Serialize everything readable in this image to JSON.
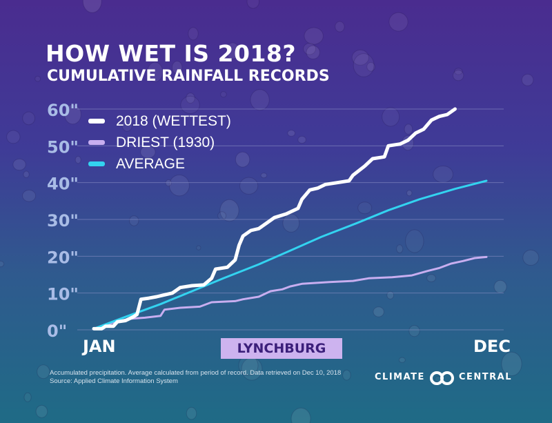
{
  "title": "HOW WET IS 2018?",
  "subtitle": "CUMULATIVE RAINFALL RECORDS",
  "location_label": "LYNCHBURG",
  "footnote": {
    "line1": "Accumulated precipitation. Average calculated from period of record. Data retrieved on Dec 10, 2018",
    "line2": "Source: Applied Climate Information System"
  },
  "logo": {
    "word1": "CLIMATE",
    "word2": "CENTRAL"
  },
  "colors": {
    "wettest": "#ffffff",
    "driest": "#c8aef0",
    "average": "#33d3f0",
    "grid": "#8a8fc4",
    "badge": "#cdb3ef"
  },
  "chart_data": {
    "type": "line",
    "title": "HOW WET IS 2018?",
    "subtitle": "CUMULATIVE RAINFALL RECORDS",
    "xlabel": "",
    "ylabel": "",
    "x_tick_labels": [
      "JAN",
      "DEC"
    ],
    "y_ticks": [
      0,
      10,
      20,
      30,
      40,
      50,
      60
    ],
    "y_tick_labels": [
      "0\"",
      "10\"",
      "20\"",
      "30\"",
      "40\"",
      "50\"",
      "60\""
    ],
    "ylim": [
      0,
      60
    ],
    "xlim": [
      0,
      1
    ],
    "grid": true,
    "legend_position": "top-left",
    "series": [
      {
        "name": "2018 (WETTEST)",
        "color": "#ffffff",
        "points": [
          [
            0.0,
            0.3
          ],
          [
            0.02,
            0.3
          ],
          [
            0.03,
            1.0
          ],
          [
            0.05,
            1.0
          ],
          [
            0.06,
            2.2
          ],
          [
            0.08,
            2.5
          ],
          [
            0.1,
            3.5
          ],
          [
            0.11,
            4.2
          ],
          [
            0.12,
            8.3
          ],
          [
            0.14,
            8.6
          ],
          [
            0.16,
            9.0
          ],
          [
            0.18,
            9.5
          ],
          [
            0.2,
            10.0
          ],
          [
            0.22,
            11.5
          ],
          [
            0.25,
            12.0
          ],
          [
            0.28,
            12.2
          ],
          [
            0.3,
            14.0
          ],
          [
            0.31,
            16.5
          ],
          [
            0.34,
            17.0
          ],
          [
            0.36,
            19.0
          ],
          [
            0.37,
            23.0
          ],
          [
            0.38,
            25.5
          ],
          [
            0.4,
            27.0
          ],
          [
            0.42,
            27.5
          ],
          [
            0.44,
            29.0
          ],
          [
            0.46,
            30.5
          ],
          [
            0.49,
            31.5
          ],
          [
            0.52,
            33.0
          ],
          [
            0.53,
            35.5
          ],
          [
            0.55,
            38.0
          ],
          [
            0.57,
            38.5
          ],
          [
            0.59,
            39.5
          ],
          [
            0.62,
            40.0
          ],
          [
            0.65,
            40.5
          ],
          [
            0.66,
            42.0
          ],
          [
            0.69,
            44.5
          ],
          [
            0.71,
            46.5
          ],
          [
            0.74,
            47.0
          ],
          [
            0.75,
            50.0
          ],
          [
            0.78,
            50.5
          ],
          [
            0.8,
            51.5
          ],
          [
            0.82,
            53.5
          ],
          [
            0.84,
            54.5
          ],
          [
            0.86,
            57.0
          ],
          [
            0.88,
            58.0
          ],
          [
            0.9,
            58.5
          ],
          [
            0.92,
            60.0
          ]
        ]
      },
      {
        "name": "DRIEST (1930)",
        "color": "#c8aef0",
        "points": [
          [
            0.0,
            0.3
          ],
          [
            0.05,
            2.0
          ],
          [
            0.09,
            3.0
          ],
          [
            0.13,
            3.3
          ],
          [
            0.17,
            3.8
          ],
          [
            0.18,
            5.5
          ],
          [
            0.22,
            6.0
          ],
          [
            0.27,
            6.3
          ],
          [
            0.3,
            7.5
          ],
          [
            0.36,
            7.8
          ],
          [
            0.38,
            8.3
          ],
          [
            0.42,
            9.0
          ],
          [
            0.45,
            10.5
          ],
          [
            0.48,
            11.0
          ],
          [
            0.5,
            11.8
          ],
          [
            0.53,
            12.5
          ],
          [
            0.6,
            13.0
          ],
          [
            0.66,
            13.3
          ],
          [
            0.7,
            14.0
          ],
          [
            0.76,
            14.3
          ],
          [
            0.81,
            14.8
          ],
          [
            0.85,
            16.0
          ],
          [
            0.88,
            16.8
          ],
          [
            0.91,
            18.0
          ],
          [
            0.94,
            18.7
          ],
          [
            0.97,
            19.5
          ],
          [
            1.0,
            19.8
          ]
        ]
      },
      {
        "name": "AVERAGE",
        "color": "#33d3f0",
        "points": [
          [
            0.0,
            0.3
          ],
          [
            0.08,
            3.5
          ],
          [
            0.17,
            7.0
          ],
          [
            0.25,
            10.5
          ],
          [
            0.33,
            14.0
          ],
          [
            0.42,
            17.8
          ],
          [
            0.5,
            21.5
          ],
          [
            0.58,
            25.3
          ],
          [
            0.67,
            29.0
          ],
          [
            0.75,
            32.5
          ],
          [
            0.83,
            35.5
          ],
          [
            0.92,
            38.3
          ],
          [
            1.0,
            40.5
          ]
        ]
      }
    ]
  }
}
